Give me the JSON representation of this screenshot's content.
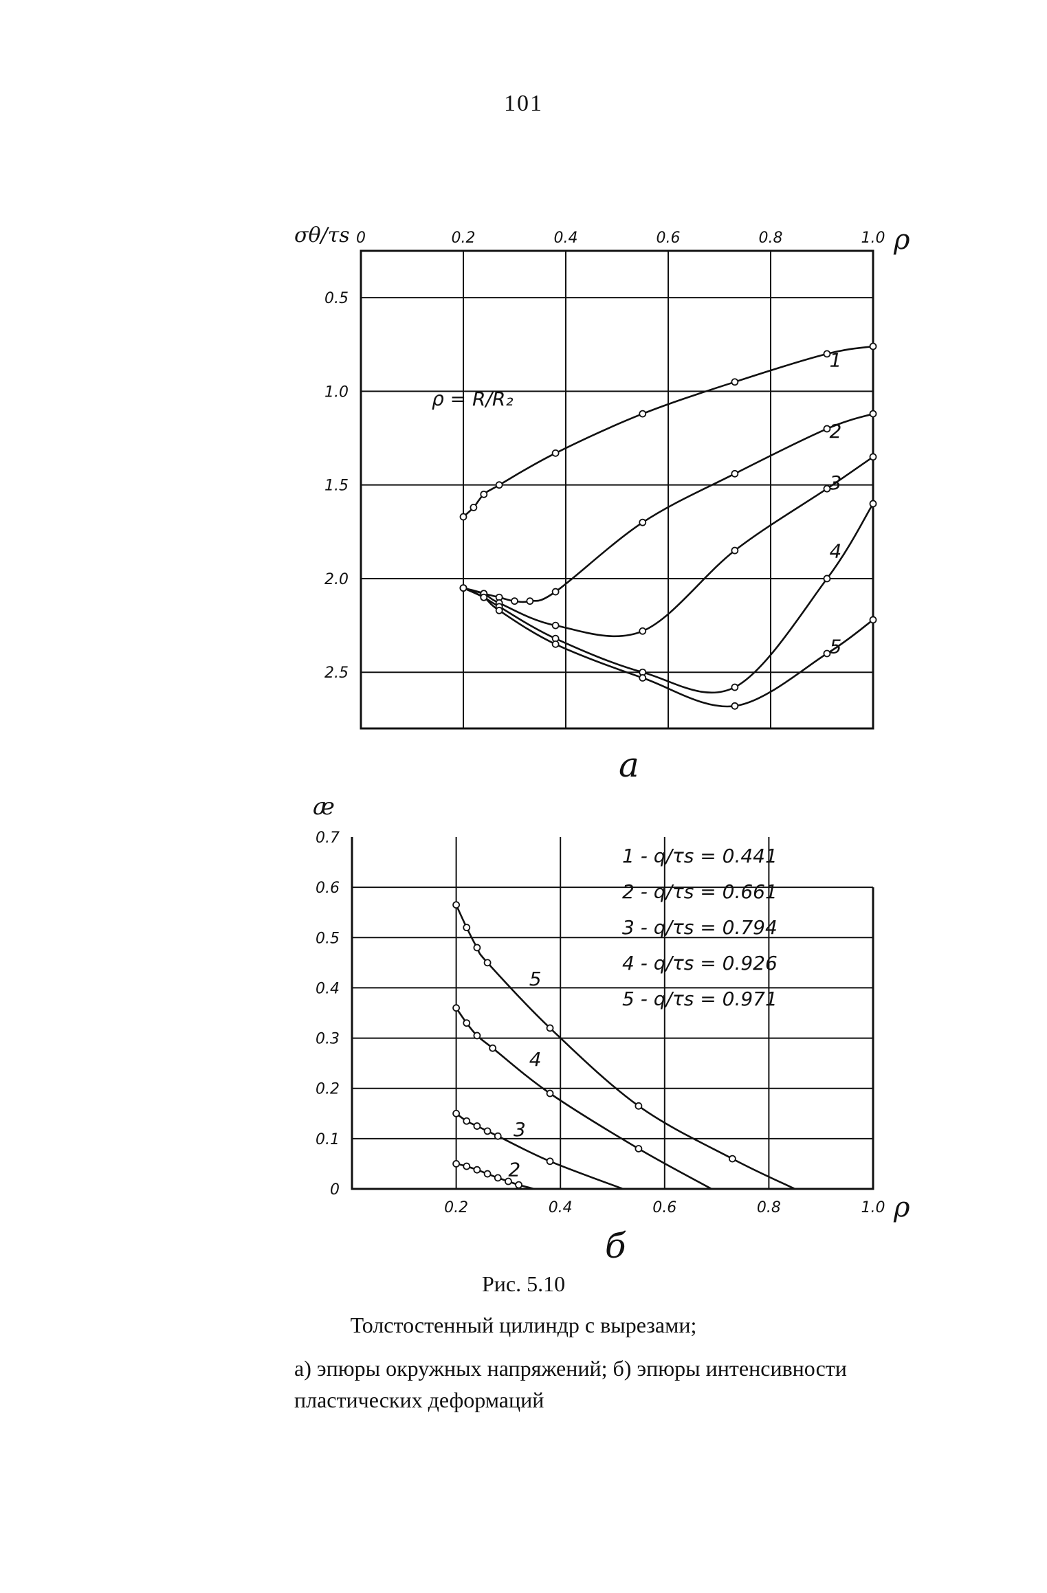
{
  "page_number": "101",
  "caption": {
    "figure": "Рис. 5.10",
    "title": "Толстостенный цилиндр с вырезами;",
    "description_line1": "а)   эпюры окружных напряжений; б)   эпюры интенсивности",
    "description_line2": "пластических деформаций"
  },
  "chart_data": [
    {
      "type": "line",
      "panel_label": "а",
      "xlabel": "ρ",
      "ylabel": "σθ/τs",
      "xlim": [
        0,
        1.0
      ],
      "ylim": [
        2.8,
        0.25
      ],
      "y_inverted": true,
      "x_ticks": [
        "0",
        "0.2",
        "0.4",
        "0.6",
        "0.8",
        "1.0"
      ],
      "y_ticks": [
        "0.5",
        "1.0",
        "1.5",
        "2.0",
        "2.5"
      ],
      "grid": true,
      "annotation": "ρ = R/R₂",
      "series": [
        {
          "name": "1",
          "x": [
            0.2,
            0.22,
            0.24,
            0.27,
            0.38,
            0.55,
            0.73,
            0.91,
            1.0
          ],
          "y": [
            1.67,
            1.62,
            1.55,
            1.5,
            1.33,
            1.12,
            0.95,
            0.8,
            0.76
          ]
        },
        {
          "name": "2",
          "x": [
            0.2,
            0.24,
            0.27,
            0.3,
            0.33,
            0.38,
            0.55,
            0.73,
            0.91,
            1.0
          ],
          "y": [
            2.05,
            2.08,
            2.1,
            2.12,
            2.12,
            2.07,
            1.7,
            1.44,
            1.2,
            1.12
          ]
        },
        {
          "name": "3",
          "x": [
            0.2,
            0.24,
            0.27,
            0.38,
            0.55,
            0.73,
            0.91,
            1.0
          ],
          "y": [
            2.05,
            2.08,
            2.13,
            2.25,
            2.28,
            1.85,
            1.52,
            1.35
          ]
        },
        {
          "name": "4",
          "x": [
            0.2,
            0.24,
            0.27,
            0.38,
            0.55,
            0.73,
            0.91,
            1.0
          ],
          "y": [
            2.05,
            2.1,
            2.15,
            2.32,
            2.5,
            2.58,
            2.0,
            1.6
          ]
        },
        {
          "name": "5",
          "x": [
            0.2,
            0.24,
            0.27,
            0.38,
            0.55,
            0.73,
            0.91,
            1.0
          ],
          "y": [
            2.05,
            2.1,
            2.17,
            2.35,
            2.53,
            2.68,
            2.4,
            2.22
          ]
        }
      ]
    },
    {
      "type": "line",
      "panel_label": "б",
      "xlabel": "ρ",
      "ylabel": "æ",
      "xlim": [
        0,
        1.0
      ],
      "ylim": [
        0,
        0.7
      ],
      "x_ticks": [
        "0.2",
        "0.4",
        "0.6",
        "0.8",
        "1.0"
      ],
      "y_ticks": [
        "0",
        "0.1",
        "0.2",
        "0.3",
        "0.4",
        "0.5",
        "0.6",
        "0.7"
      ],
      "grid": true,
      "legend": [
        "1 - q/τs = 0.441",
        "2 - q/τs = 0.661",
        "3 - q/τs = 0.794",
        "4 - q/τs = 0.926",
        "5 - q/τs = 0.971"
      ],
      "series": [
        {
          "name": "2",
          "x": [
            0.2,
            0.22,
            0.24,
            0.26,
            0.28,
            0.3,
            0.32,
            0.35
          ],
          "y": [
            0.05,
            0.045,
            0.038,
            0.03,
            0.022,
            0.015,
            0.008,
            0.0
          ]
        },
        {
          "name": "3",
          "x": [
            0.2,
            0.22,
            0.24,
            0.26,
            0.28,
            0.38,
            0.52
          ],
          "y": [
            0.15,
            0.135,
            0.125,
            0.115,
            0.105,
            0.055,
            0.0
          ]
        },
        {
          "name": "4",
          "x": [
            0.2,
            0.22,
            0.24,
            0.27,
            0.38,
            0.55,
            0.69
          ],
          "y": [
            0.36,
            0.33,
            0.305,
            0.28,
            0.19,
            0.08,
            0.0
          ]
        },
        {
          "name": "5",
          "x": [
            0.2,
            0.22,
            0.24,
            0.26,
            0.38,
            0.55,
            0.73,
            0.85
          ],
          "y": [
            0.565,
            0.52,
            0.48,
            0.45,
            0.32,
            0.165,
            0.06,
            0.0
          ]
        }
      ]
    }
  ]
}
